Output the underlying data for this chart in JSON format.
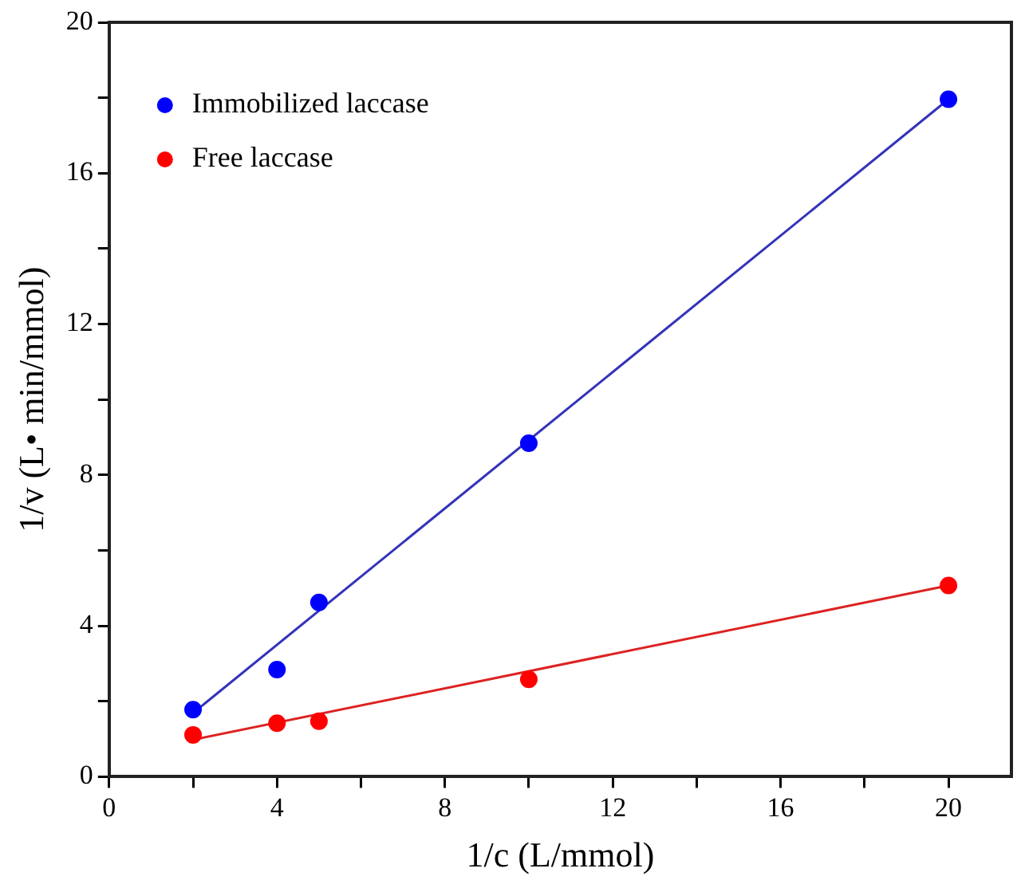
{
  "chart_data": {
    "type": "scatter",
    "xlabel": "1/c (L/mmol)",
    "ylabel": "1/v (L• min/mmol)",
    "xlim": [
      0,
      21.5
    ],
    "ylim": [
      0,
      20
    ],
    "xticks": [
      0,
      {
        "value": 2,
        "label": null
      },
      4,
      {
        "value": 6,
        "label": null
      },
      8,
      {
        "value": 10,
        "label": null
      },
      12,
      {
        "value": 14,
        "label": null
      },
      16,
      {
        "value": 18,
        "label": null
      },
      20
    ],
    "yticks": [
      0,
      {
        "value": 2,
        "label": null
      },
      4,
      {
        "value": 6,
        "label": null
      },
      8,
      {
        "value": 10,
        "label": null
      },
      12,
      {
        "value": 14,
        "label": null
      },
      16,
      {
        "value": 18,
        "label": null
      },
      20
    ],
    "grid": false,
    "legend": "top left",
    "marker": "circle",
    "series": [
      {
        "name": "Immobilized laccase",
        "color": "#0000ff",
        "x": [
          2,
          4,
          5,
          10,
          20
        ],
        "values": [
          1.78,
          2.84,
          4.62,
          8.84,
          17.96
        ]
      },
      {
        "name": "Free laccase",
        "color": "#ff0000",
        "x": [
          2,
          4,
          5,
          10,
          20
        ],
        "values": [
          1.11,
          1.42,
          1.47,
          2.58,
          5.07
        ]
      },
      {
        "type": "line",
        "color": "#3333bb",
        "x": [
          2,
          20
        ],
        "values": [
          1.69,
          17.96
        ],
        "marker": "none"
      },
      {
        "type": "line",
        "color": "#dd2222",
        "x": [
          2,
          20
        ],
        "values": [
          0.98,
          5.07
        ],
        "marker": "none"
      }
    ]
  }
}
